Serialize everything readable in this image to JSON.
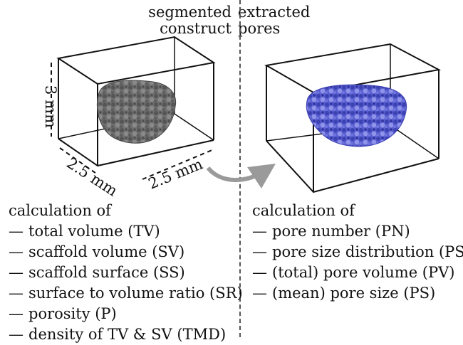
{
  "header": {
    "left": [
      "segmented",
      "construct"
    ],
    "right": [
      "extracted",
      "pores"
    ]
  },
  "dimensions": {
    "height": "3 mm",
    "width_left": "2.5 mm",
    "width_right": "2.5 mm"
  },
  "left_list": {
    "title": "calculation of",
    "items": [
      "total volume (TV)",
      "scaffold volume (SV)",
      "scaffold surface (SS)",
      "surface to volume ratio (SR)",
      "porosity (P)",
      "density of TV & SV (TMD)"
    ]
  },
  "right_list": {
    "title": "calculation of",
    "items": [
      "pore number (PN)",
      "pore size distribution (PSR)",
      "(total) pore volume (PV)",
      "(mean) pore size (PS)"
    ]
  },
  "colors": {
    "scaffold": "#6b6b6b",
    "pores": "#4a4fc0",
    "arrow": "#9a9a9a"
  }
}
